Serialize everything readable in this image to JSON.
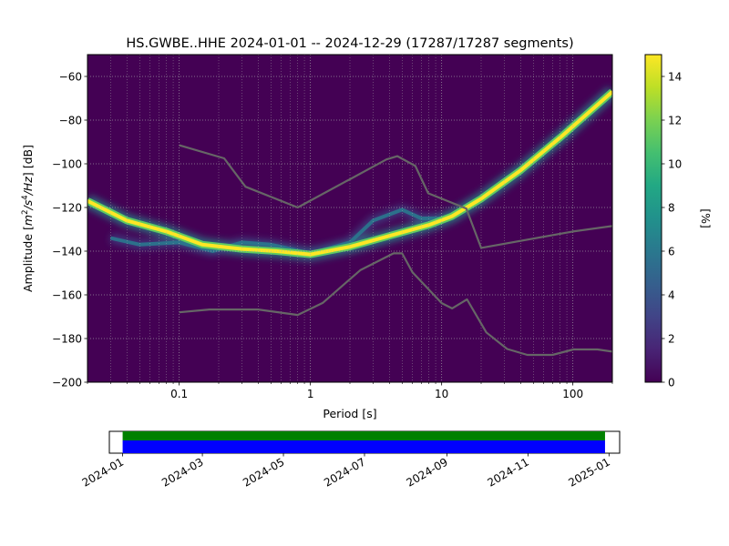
{
  "chart_data": {
    "type": "heatmap",
    "title": "HS.GWBE..HHE   2024-01-01 -- 2024-12-29  (17287/17287 segments)",
    "xlabel": "Period [s]",
    "ylabel_parts": [
      "Amplitude [",
      "m",
      "2",
      "/s",
      "4",
      "/Hz",
      "] [dB]"
    ],
    "xscale": "log",
    "xlim": [
      0.02,
      200
    ],
    "ylim": [
      -200,
      -50
    ],
    "x_ticks": [
      {
        "value": 0.1,
        "label": "0.1"
      },
      {
        "value": 1,
        "label": "1"
      },
      {
        "value": 10,
        "label": "10"
      },
      {
        "value": 100,
        "label": "100"
      }
    ],
    "y_ticks": [
      {
        "value": -60,
        "label": "−60"
      },
      {
        "value": -80,
        "label": "−80"
      },
      {
        "value": -100,
        "label": "−100"
      },
      {
        "value": -120,
        "label": "−120"
      },
      {
        "value": -140,
        "label": "−140"
      },
      {
        "value": -160,
        "label": "−160"
      },
      {
        "value": -180,
        "label": "−180"
      },
      {
        "value": -200,
        "label": "−200"
      }
    ],
    "grid": true,
    "colorbar": {
      "label": "[%]",
      "range": [
        0,
        15
      ],
      "colormap": "viridis",
      "ticks": [
        {
          "value": 0,
          "label": "0"
        },
        {
          "value": 2,
          "label": "2"
        },
        {
          "value": 4,
          "label": "4"
        },
        {
          "value": 6,
          "label": "6"
        },
        {
          "value": 8,
          "label": "8"
        },
        {
          "value": 10,
          "label": "10"
        },
        {
          "value": 12,
          "label": "12"
        },
        {
          "value": 14,
          "label": "14"
        }
      ]
    },
    "background_color": "#440154",
    "series": [
      {
        "kind": "noise-model-high",
        "color": "#666666",
        "points": [
          [
            0.1,
            -91.5
          ],
          [
            0.22,
            -97.5
          ],
          [
            0.32,
            -110.5
          ],
          [
            0.8,
            -120
          ],
          [
            3.8,
            -98
          ],
          [
            4.6,
            -96.5
          ],
          [
            6.3,
            -101
          ],
          [
            7.9,
            -113.5
          ],
          [
            15.4,
            -120.5
          ],
          [
            20,
            -138.5
          ],
          [
            100,
            -131
          ],
          [
            200,
            -128.5
          ]
        ]
      },
      {
        "kind": "noise-model-low",
        "color": "#666666",
        "points": [
          [
            0.1,
            -168
          ],
          [
            0.17,
            -166.7
          ],
          [
            0.4,
            -166.7
          ],
          [
            0.8,
            -169.2
          ],
          [
            1.24,
            -163.7
          ],
          [
            2.4,
            -148.7
          ],
          [
            4.3,
            -141
          ],
          [
            5.0,
            -141
          ],
          [
            6.0,
            -149.7
          ],
          [
            10,
            -163.8
          ],
          [
            12,
            -166.2
          ],
          [
            15.6,
            -162.1
          ],
          [
            21.9,
            -177.2
          ],
          [
            31.6,
            -184.8
          ],
          [
            45,
            -187.5
          ],
          [
            70,
            -187.5
          ],
          [
            101,
            -185
          ],
          [
            154,
            -185
          ],
          [
            200,
            -186
          ]
        ]
      }
    ],
    "mode_path": [
      [
        0.02,
        -117
      ],
      [
        0.04,
        -126
      ],
      [
        0.08,
        -131
      ],
      [
        0.15,
        -137
      ],
      [
        0.3,
        -139
      ],
      [
        0.55,
        -140
      ],
      [
        1,
        -141.5
      ],
      [
        2,
        -138
      ],
      [
        4,
        -133
      ],
      [
        8,
        -128
      ],
      [
        12,
        -124
      ],
      [
        20,
        -116
      ],
      [
        40,
        -103
      ],
      [
        80,
        -88
      ],
      [
        200,
        -67
      ]
    ],
    "secondary_path": [
      [
        0.03,
        -134
      ],
      [
        0.05,
        -137
      ],
      [
        0.1,
        -136
      ],
      [
        0.18,
        -140
      ],
      [
        0.3,
        -136
      ],
      [
        0.5,
        -137
      ],
      [
        1,
        -141
      ],
      [
        2,
        -136
      ],
      [
        3,
        -126
      ],
      [
        5,
        -121
      ],
      [
        7,
        -125
      ],
      [
        10,
        -125
      ]
    ]
  },
  "timeline": {
    "ticks": [
      {
        "date": "2024-01-01",
        "label": "2024-01"
      },
      {
        "date": "2024-03-01",
        "label": "2024-03"
      },
      {
        "date": "2024-05-01",
        "label": "2024-05"
      },
      {
        "date": "2024-07-01",
        "label": "2024-07"
      },
      {
        "date": "2024-09-01",
        "label": "2024-09"
      },
      {
        "date": "2024-11-01",
        "label": "2024-11"
      },
      {
        "date": "2025-01-01",
        "label": "2025-01"
      }
    ],
    "range": [
      "2023-12-22",
      "2025-01-09"
    ],
    "bars": [
      {
        "name": "data-availability",
        "color": "#008000",
        "start": "2024-01-01",
        "end": "2024-12-29"
      },
      {
        "name": "segment-coverage",
        "color": "#0000ff",
        "start": "2024-01-01",
        "end": "2024-12-29"
      }
    ]
  }
}
